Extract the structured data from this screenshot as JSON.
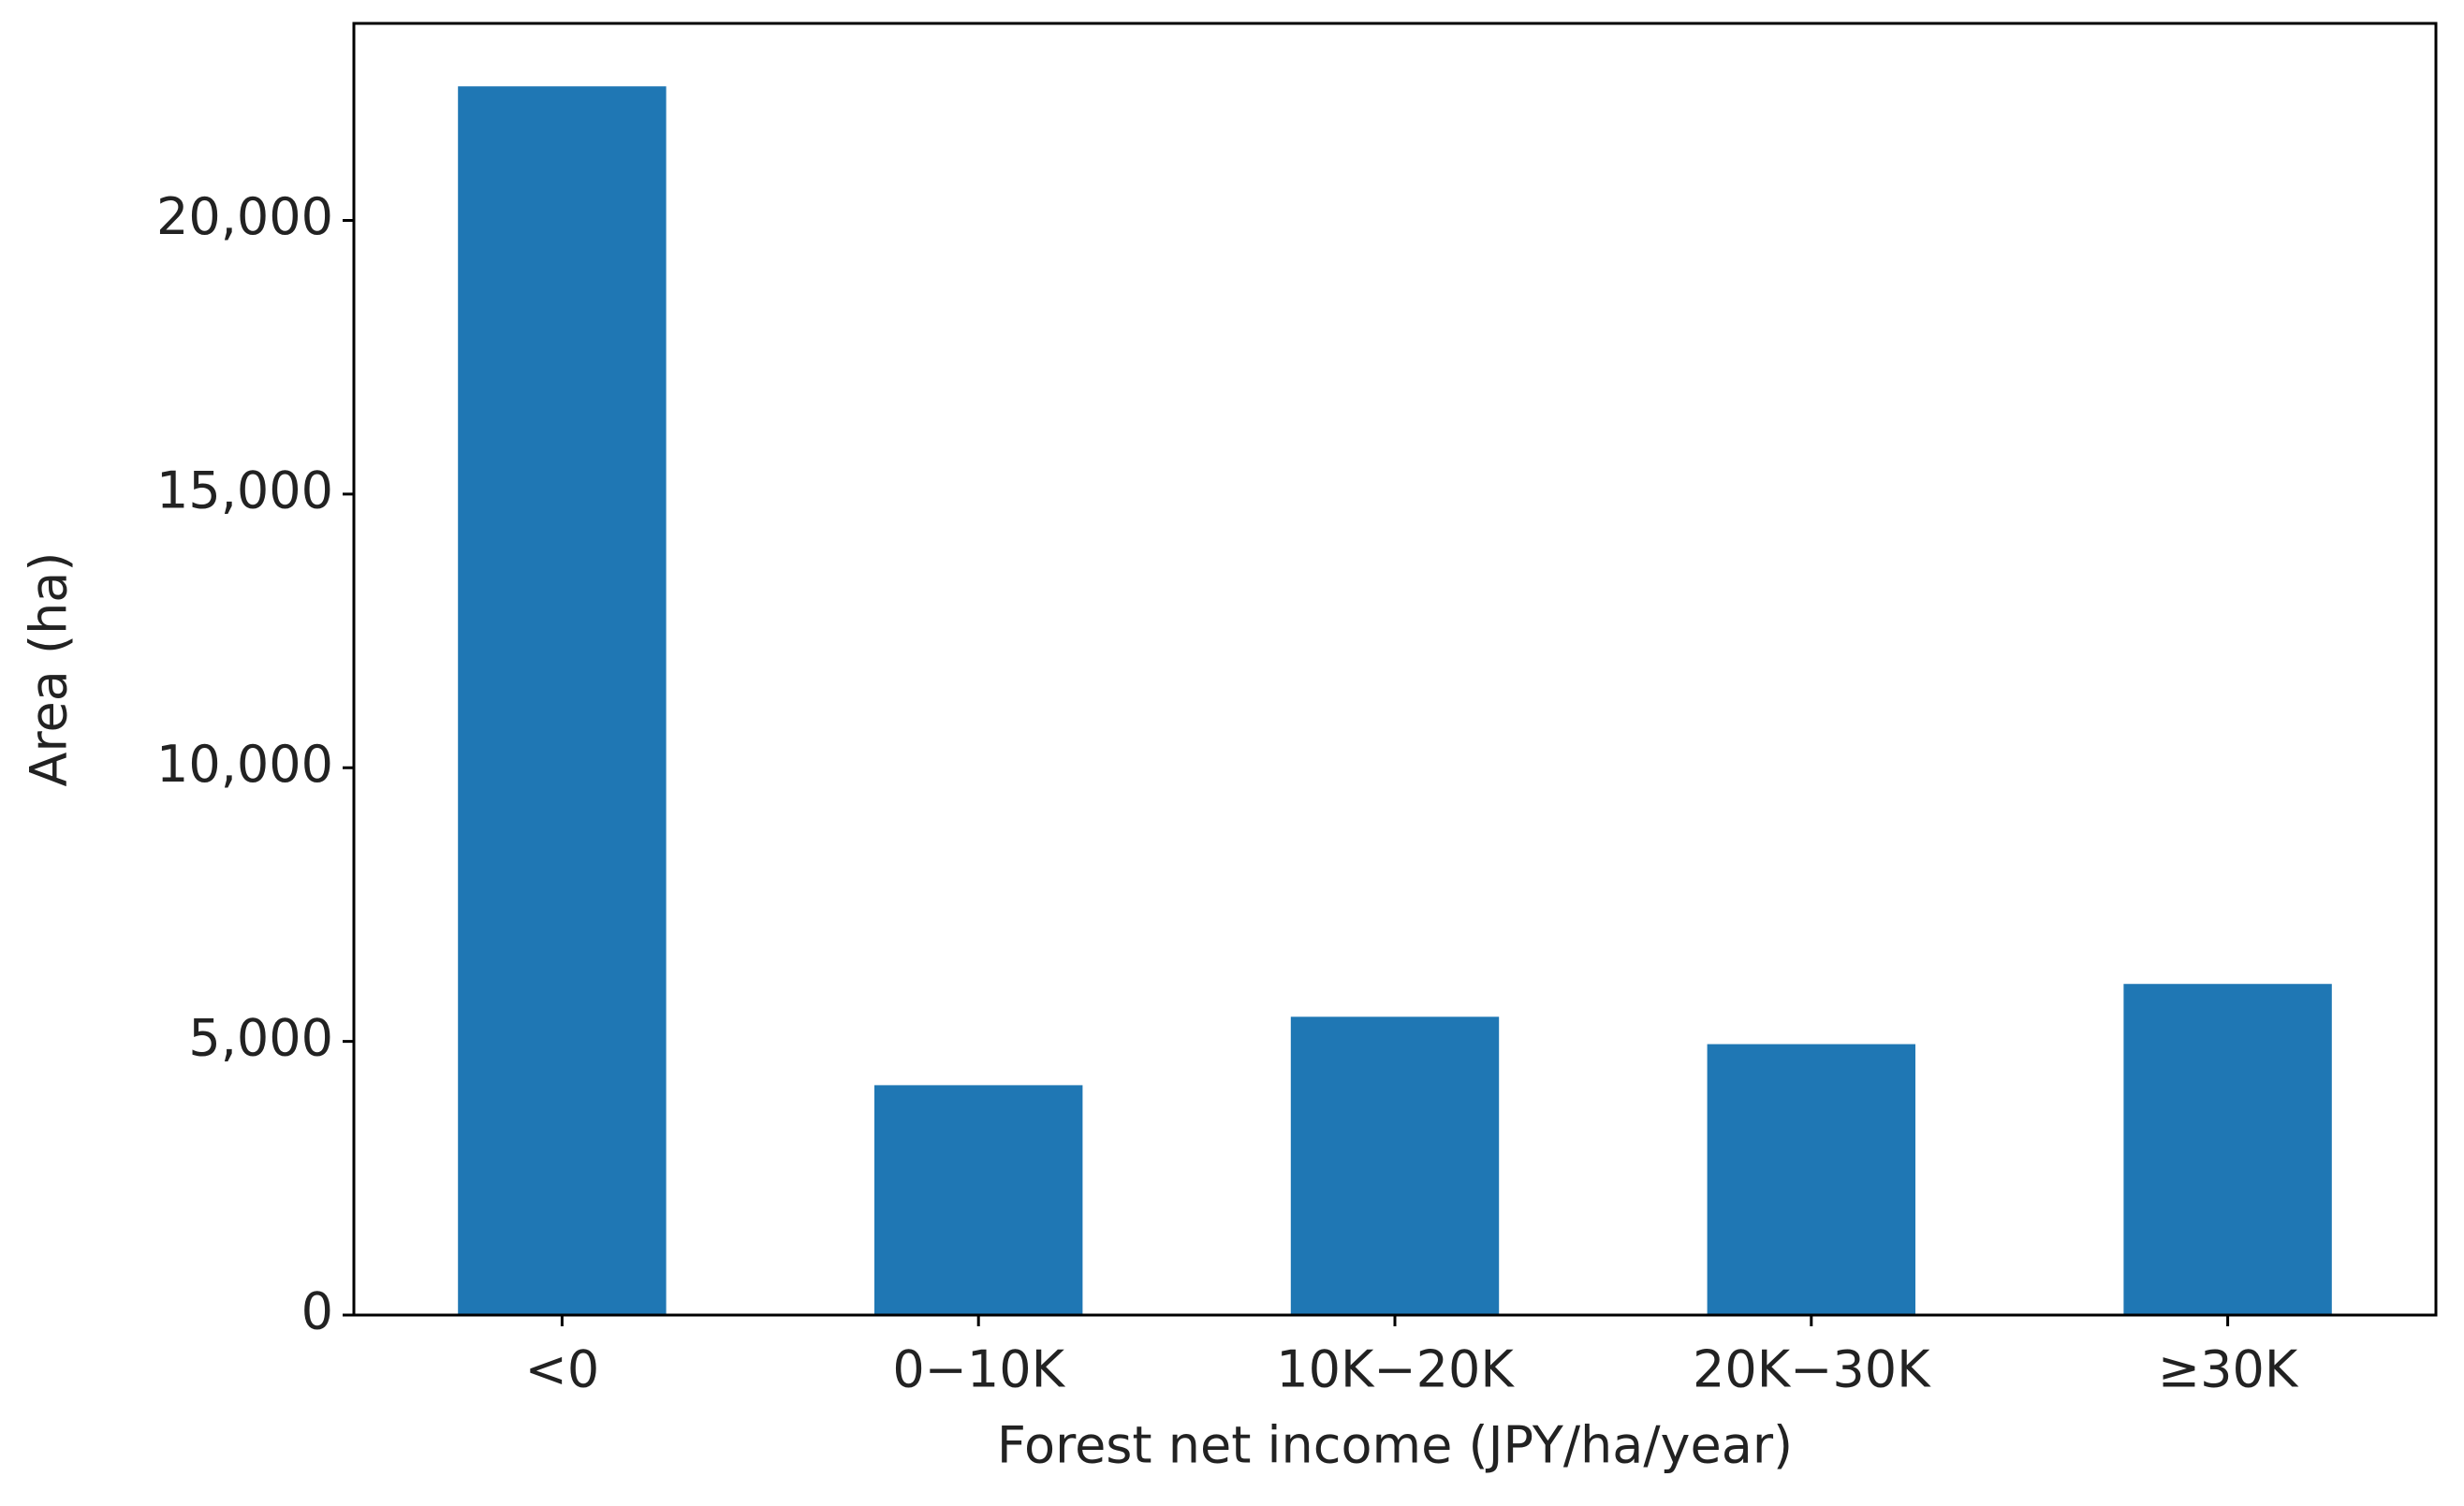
{
  "chart_data": {
    "type": "bar",
    "x_label": "Forest net income (JPY/ha/year)",
    "y_label": "Area (ha)",
    "categories": [
      "<0",
      "0−10K",
      "10K−20K",
      "20K−30K",
      "≥30K"
    ],
    "values": [
      22450,
      4200,
      5450,
      4950,
      6050
    ],
    "color": "#1f77b4",
    "ylim": [
      0,
      23600
    ],
    "yticks": [
      0,
      {
        "value": 5000,
        "label": "5,000"
      },
      {
        "value": 10000,
        "label": "10,000"
      },
      {
        "value": 15000,
        "label": "15,000"
      },
      {
        "value": 20000,
        "label": "20,000"
      }
    ],
    "grid": false
  }
}
